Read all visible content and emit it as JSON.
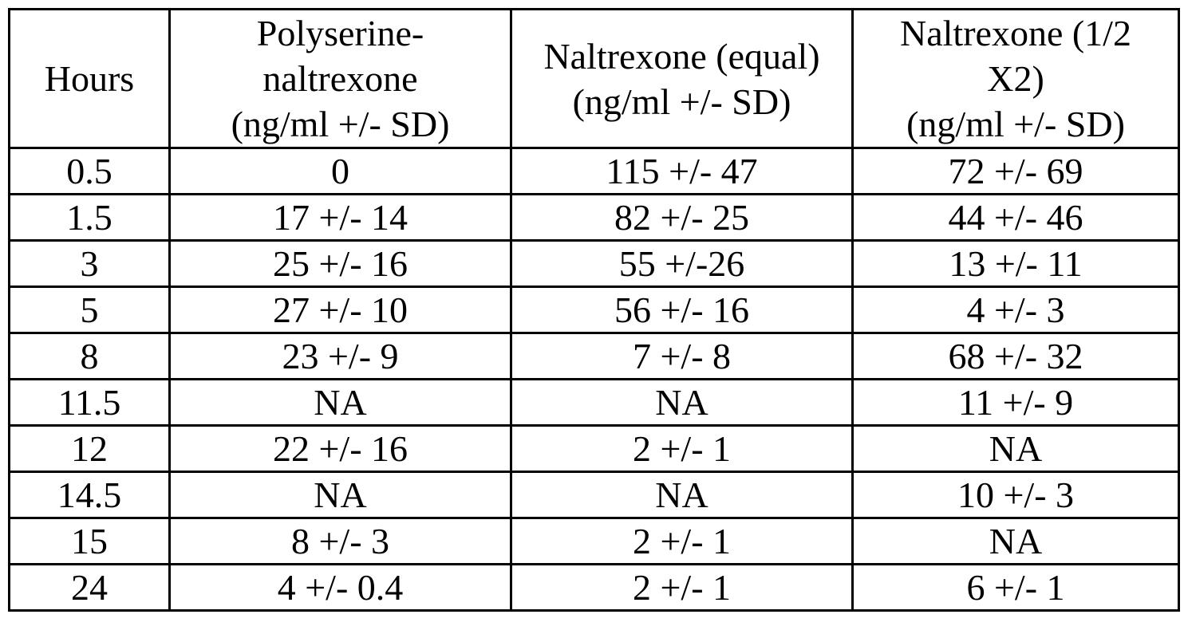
{
  "table": {
    "headers": [
      {
        "lines": [
          "Hours"
        ]
      },
      {
        "lines": [
          "Polyserine-",
          "naltrexone",
          "(ng/ml +/- SD)"
        ]
      },
      {
        "lines": [
          "Naltrexone (equal)",
          "(ng/ml +/- SD)"
        ]
      },
      {
        "lines": [
          "Naltrexone (1/2",
          "X2)",
          "(ng/ml +/- SD)"
        ]
      }
    ],
    "rows": [
      [
        "0.5",
        "0",
        "115 +/- 47",
        "72 +/- 69"
      ],
      [
        "1.5",
        "17 +/- 14",
        "82 +/- 25",
        "44 +/- 46"
      ],
      [
        "3",
        "25 +/- 16",
        "55 +/-26",
        "13 +/- 11"
      ],
      [
        "5",
        "27 +/- 10",
        "56 +/- 16",
        "4 +/- 3"
      ],
      [
        "8",
        "23 +/- 9",
        "7 +/- 8",
        "68 +/- 32"
      ],
      [
        "11.5",
        "NA",
        "NA",
        "11 +/- 9"
      ],
      [
        "12",
        "22 +/- 16",
        "2 +/- 1",
        "NA"
      ],
      [
        "14.5",
        "NA",
        "NA",
        "10 +/- 3"
      ],
      [
        "15",
        "8 +/- 3",
        "2 +/- 1",
        "NA"
      ],
      [
        "24",
        "4 +/- 0.4",
        "2 +/- 1",
        "6 +/- 1"
      ]
    ]
  }
}
